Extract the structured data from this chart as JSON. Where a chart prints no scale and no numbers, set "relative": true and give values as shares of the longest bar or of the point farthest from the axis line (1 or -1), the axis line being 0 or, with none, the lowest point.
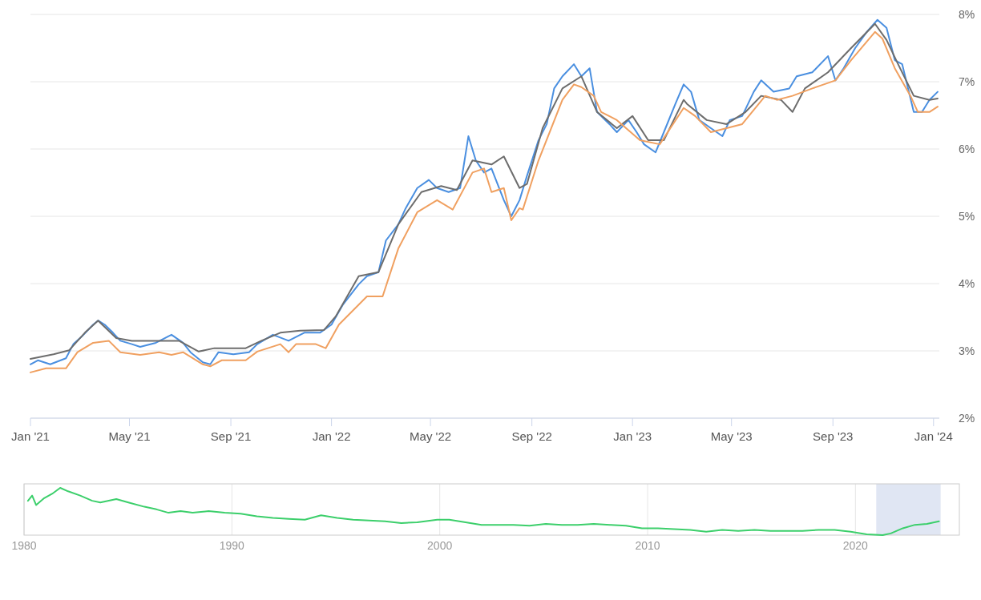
{
  "chart_data": [
    {
      "type": "line",
      "x": [
        "2021-01-01",
        "2021-01-10",
        "2021-01-25",
        "2021-02-13",
        "2021-02-22",
        "2021-03-04",
        "2021-03-18",
        "2021-03-24",
        "2021-04-01",
        "2021-04-11",
        "2021-04-20",
        "2021-05-04",
        "2021-05-14",
        "2021-06-02",
        "2021-06-21",
        "2021-07-05",
        "2021-07-14",
        "2021-07-29",
        "2021-08-07",
        "2021-08-17",
        "2021-09-04",
        "2021-09-23",
        "2021-10-03",
        "2021-10-22",
        "2021-11-10",
        "2021-11-29",
        "2021-12-18",
        "2022-01-01",
        "2022-01-15",
        "2022-02-03",
        "2022-02-13",
        "2022-02-27",
        "2022-03-08",
        "2022-03-23",
        "2022-04-01",
        "2022-04-15",
        "2022-04-29",
        "2022-05-09",
        "2022-05-23",
        "2022-06-06",
        "2022-06-16",
        "2022-06-25",
        "2022-07-05",
        "2022-07-14",
        "2022-07-29",
        "2022-08-07",
        "2022-08-17",
        "2022-08-26",
        "2022-09-09",
        "2022-09-19",
        "2022-09-28",
        "2022-10-08",
        "2022-10-22",
        "2022-10-31",
        "2022-11-10",
        "2022-11-19",
        "2022-12-04",
        "2022-12-13",
        "2022-12-27",
        "2023-01-06",
        "2023-01-15",
        "2023-01-29",
        "2023-02-08",
        "2023-02-22",
        "2023-03-04",
        "2023-03-13",
        "2023-03-23",
        "2023-04-06",
        "2023-04-20",
        "2023-04-29",
        "2023-05-14",
        "2023-05-28",
        "2023-06-06",
        "2023-06-21",
        "2023-07-10",
        "2023-07-19",
        "2023-08-07",
        "2023-08-26",
        "2023-09-04",
        "2023-09-14",
        "2023-09-28",
        "2023-10-12",
        "2023-10-25",
        "2023-11-05",
        "2023-11-15",
        "2023-11-24",
        "2023-12-08",
        "2023-12-18",
        "2023-12-27",
        "2024-01-06"
      ],
      "series": [
        {
          "color": "#4a8fe0",
          "values": [
            2.8,
            2.86,
            2.8,
            2.89,
            3.1,
            3.21,
            3.39,
            3.45,
            3.39,
            3.27,
            3.15,
            3.1,
            3.06,
            3.12,
            3.24,
            3.12,
            2.98,
            2.83,
            2.8,
            2.98,
            2.95,
            2.98,
            3.1,
            3.24,
            3.15,
            3.27,
            3.27,
            3.39,
            3.69,
            3.99,
            4.11,
            4.17,
            4.64,
            4.88,
            5.12,
            5.42,
            5.54,
            5.42,
            5.36,
            5.42,
            6.19,
            5.83,
            5.65,
            5.71,
            5.24,
            5.0,
            5.24,
            5.6,
            6.13,
            6.37,
            6.9,
            7.08,
            7.26,
            7.08,
            7.2,
            6.55,
            6.37,
            6.25,
            6.43,
            6.25,
            6.07,
            5.95,
            6.25,
            6.67,
            6.96,
            6.85,
            6.43,
            6.31,
            6.19,
            6.43,
            6.49,
            6.85,
            7.02,
            6.85,
            6.9,
            7.08,
            7.14,
            7.38,
            7.02,
            7.2,
            7.5,
            7.74,
            7.92,
            7.8,
            7.32,
            7.26,
            6.55,
            6.55,
            6.73,
            6.85
          ]
        },
        {
          "color": "#6d6d6d",
          "x": [
            "2021-01-01",
            "2021-01-29",
            "2021-02-17",
            "2021-03-08",
            "2021-03-24",
            "2021-04-15",
            "2021-05-04",
            "2021-06-30",
            "2021-07-24",
            "2021-08-12",
            "2021-09-19",
            "2021-10-08",
            "2021-10-31",
            "2021-11-24",
            "2021-12-23",
            "2022-01-06",
            "2022-02-03",
            "2022-02-27",
            "2022-03-23",
            "2022-04-20",
            "2022-05-14",
            "2022-06-02",
            "2022-06-21",
            "2022-07-14",
            "2022-07-29",
            "2022-08-17",
            "2022-08-26",
            "2022-09-14",
            "2022-10-08",
            "2022-10-31",
            "2022-11-19",
            "2022-12-13",
            "2023-01-01",
            "2023-01-20",
            "2023-02-08",
            "2023-03-04",
            "2023-03-08",
            "2023-04-01",
            "2023-04-25",
            "2023-05-18",
            "2023-06-06",
            "2023-06-30",
            "2023-07-14",
            "2023-07-29",
            "2023-08-26",
            "2023-09-23",
            "2023-10-22",
            "2023-11-05",
            "2023-11-19",
            "2023-12-08",
            "2023-12-27",
            "2024-01-06"
          ],
          "values": [
            2.88,
            2.95,
            3.01,
            3.27,
            3.45,
            3.19,
            3.15,
            3.15,
            2.99,
            3.04,
            3.04,
            3.15,
            3.27,
            3.3,
            3.31,
            3.51,
            4.11,
            4.17,
            4.88,
            5.36,
            5.45,
            5.39,
            5.83,
            5.77,
            5.89,
            5.42,
            5.48,
            6.31,
            6.9,
            7.08,
            6.55,
            6.31,
            6.49,
            6.13,
            6.13,
            6.73,
            6.67,
            6.43,
            6.37,
            6.55,
            6.79,
            6.73,
            6.55,
            6.9,
            7.14,
            7.5,
            7.86,
            7.62,
            7.26,
            6.79,
            6.73,
            6.75
          ]
        },
        {
          "color": "#f0a060",
          "x": [
            "2021-01-01",
            "2021-01-20",
            "2021-02-13",
            "2021-02-27",
            "2021-03-18",
            "2021-04-06",
            "2021-04-20",
            "2021-05-14",
            "2021-06-06",
            "2021-06-21",
            "2021-07-05",
            "2021-07-29",
            "2021-08-07",
            "2021-08-21",
            "2021-09-19",
            "2021-10-03",
            "2021-10-31",
            "2021-11-10",
            "2021-11-19",
            "2021-12-13",
            "2021-12-25",
            "2022-01-10",
            "2022-02-13",
            "2022-03-04",
            "2022-03-23",
            "2022-04-15",
            "2022-05-09",
            "2022-05-28",
            "2022-06-21",
            "2022-07-05",
            "2022-07-14",
            "2022-07-29",
            "2022-08-07",
            "2022-08-17",
            "2022-08-21",
            "2022-09-09",
            "2022-10-08",
            "2022-10-22",
            "2022-10-31",
            "2022-11-15",
            "2022-11-24",
            "2022-12-13",
            "2023-01-10",
            "2023-02-03",
            "2023-03-04",
            "2023-03-18",
            "2023-04-06",
            "2023-04-25",
            "2023-05-14",
            "2023-06-11",
            "2023-06-25",
            "2023-07-14",
            "2023-08-07",
            "2023-09-04",
            "2023-09-23",
            "2023-10-22",
            "2023-10-31",
            "2023-11-15",
            "2023-12-04",
            "2023-12-13",
            "2023-12-27",
            "2024-01-06"
          ],
          "values": [
            2.68,
            2.74,
            2.74,
            2.98,
            3.12,
            3.15,
            2.98,
            2.94,
            2.98,
            2.94,
            2.98,
            2.8,
            2.77,
            2.86,
            2.86,
            2.99,
            3.1,
            2.98,
            3.1,
            3.1,
            3.04,
            3.39,
            3.81,
            3.81,
            4.52,
            5.06,
            5.24,
            5.1,
            5.65,
            5.71,
            5.36,
            5.42,
            4.94,
            5.12,
            5.1,
            5.83,
            6.73,
            6.96,
            6.92,
            6.79,
            6.55,
            6.43,
            6.13,
            6.07,
            6.61,
            6.49,
            6.25,
            6.31,
            6.37,
            6.79,
            6.73,
            6.79,
            6.9,
            7.02,
            7.32,
            7.74,
            7.64,
            7.2,
            6.79,
            6.55,
            6.55,
            6.63
          ]
        }
      ],
      "xlim": [
        "2021-01-01",
        "2024-01-08"
      ],
      "xticks": [
        {
          "value": "2021-01-01",
          "label": "Jan '21"
        },
        {
          "value": "2021-05-01",
          "label": "May '21"
        },
        {
          "value": "2021-09-01",
          "label": "Sep '21"
        },
        {
          "value": "2022-01-01",
          "label": "Jan '22"
        },
        {
          "value": "2022-05-01",
          "label": "May '22"
        },
        {
          "value": "2022-09-01",
          "label": "Sep '22"
        },
        {
          "value": "2023-01-01",
          "label": "Jan '23"
        },
        {
          "value": "2023-05-01",
          "label": "May '23"
        },
        {
          "value": "2023-09-01",
          "label": "Sep '23"
        },
        {
          "value": "2024-01-01",
          "label": "Jan '24"
        }
      ],
      "ylim": [
        2,
        8
      ],
      "yticks": [
        {
          "value": 2,
          "label": "2%"
        },
        {
          "value": 3,
          "label": "3%"
        },
        {
          "value": 4,
          "label": "4%"
        },
        {
          "value": 5,
          "label": "5%"
        },
        {
          "value": 6,
          "label": "6%"
        },
        {
          "value": 7,
          "label": "7%"
        },
        {
          "value": 8,
          "label": "8%"
        }
      ],
      "grid": "y"
    },
    {
      "type": "line",
      "relative": true,
      "x": [
        1980.19,
        1980.39,
        1980.58,
        1980.97,
        1981.35,
        1981.74,
        1982.12,
        1982.7,
        1983.28,
        1983.67,
        1984.44,
        1985.02,
        1985.79,
        1986.37,
        1986.95,
        1987.53,
        1988.11,
        1988.88,
        1989.65,
        1990.42,
        1991.2,
        1991.97,
        1992.74,
        1993.51,
        1994.29,
        1995.06,
        1995.83,
        1996.6,
        1997.37,
        1998.15,
        1998.92,
        1999.88,
        2000.46,
        2001.24,
        2002.01,
        2002.78,
        2003.55,
        2004.32,
        2005.1,
        2005.87,
        2006.64,
        2007.41,
        2008.19,
        2008.96,
        2009.73,
        2010.5,
        2011.27,
        2012.05,
        2012.82,
        2013.59,
        2014.36,
        2015.14,
        2015.91,
        2016.68,
        2017.45,
        2018.22,
        2019,
        2019.77,
        2020.54,
        2021.31,
        2021.7,
        2022.28,
        2022.86,
        2023.44,
        2024.02
      ],
      "series": [
        {
          "color": "#3ccf6b",
          "values": [
            0.727,
            0.836,
            0.636,
            0.782,
            0.873,
            1,
            0.927,
            0.836,
            0.727,
            0.691,
            0.764,
            0.691,
            0.6,
            0.545,
            0.473,
            0.509,
            0.473,
            0.509,
            0.473,
            0.455,
            0.4,
            0.364,
            0.345,
            0.327,
            0.418,
            0.364,
            0.327,
            0.309,
            0.291,
            0.255,
            0.273,
            0.327,
            0.327,
            0.273,
            0.218,
            0.218,
            0.218,
            0.2,
            0.236,
            0.218,
            0.218,
            0.236,
            0.218,
            0.2,
            0.145,
            0.145,
            0.127,
            0.109,
            0.073,
            0.109,
            0.091,
            0.109,
            0.091,
            0.091,
            0.091,
            0.109,
            0.109,
            0.073,
            0.018,
            0,
            0.036,
            0.145,
            0.218,
            0.236,
            0.291
          ]
        }
      ],
      "xlim": [
        1980,
        2025
      ],
      "xticks": [
        1980,
        1990,
        2000,
        2010,
        2020
      ],
      "grid": "x",
      "bands": [
        {
          "axis": "x",
          "from": 2021,
          "to": 2024.1,
          "color": "#ccd6eb"
        }
      ]
    }
  ]
}
